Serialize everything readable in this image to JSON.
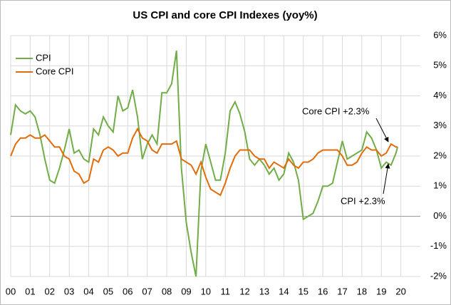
{
  "chart_data": {
    "type": "line",
    "title": "US CPI and core CPI Indexes (yoy%)",
    "x": [
      0,
      0.25,
      0.5,
      0.75,
      1,
      1.25,
      1.5,
      1.75,
      2,
      2.25,
      2.5,
      2.75,
      3,
      3.25,
      3.5,
      3.75,
      4,
      4.25,
      4.5,
      4.75,
      5,
      5.25,
      5.5,
      5.75,
      6,
      6.25,
      6.5,
      6.75,
      7,
      7.25,
      7.5,
      7.75,
      8,
      8.25,
      8.5,
      8.75,
      9,
      9.25,
      9.5,
      9.75,
      10,
      10.25,
      10.5,
      10.75,
      11,
      11.25,
      11.5,
      11.75,
      12,
      12.25,
      12.5,
      12.75,
      13,
      13.25,
      13.5,
      13.75,
      14,
      14.25,
      14.5,
      14.75,
      15,
      15.25,
      15.5,
      15.75,
      16,
      16.25,
      16.5,
      16.75,
      17,
      17.25,
      17.5,
      17.75,
      18,
      18.25,
      18.5,
      18.75,
      19,
      19.25,
      19.5,
      19.75,
      19.83
    ],
    "series": [
      {
        "name": "CPI",
        "color": "#70ad47",
        "values": [
          2.7,
          3.7,
          3.5,
          3.4,
          3.5,
          3.3,
          2.7,
          1.9,
          1.2,
          1.1,
          1.6,
          2.2,
          2.9,
          2.1,
          2.2,
          1.9,
          1.8,
          2.9,
          2.7,
          3.3,
          3.0,
          2.8,
          4.0,
          3.5,
          3.6,
          4.2,
          3.3,
          1.9,
          2.4,
          2.7,
          2.4,
          4.1,
          4.1,
          4.4,
          5.5,
          1.6,
          -0.2,
          -1.2,
          -2.0,
          1.5,
          2.4,
          1.8,
          1.2,
          1.2,
          2.1,
          3.5,
          3.8,
          3.4,
          2.8,
          1.9,
          1.7,
          1.9,
          1.7,
          1.4,
          1.6,
          1.2,
          1.4,
          2.1,
          1.8,
          1.2,
          -0.1,
          0.0,
          0.1,
          0.5,
          1.0,
          1.0,
          1.1,
          1.8,
          2.5,
          1.9,
          2.0,
          2.1,
          2.2,
          2.8,
          2.6,
          2.2,
          1.6,
          1.8,
          1.7,
          2.1,
          2.3
        ]
      },
      {
        "name": "Core CPI",
        "color": "#e36c0a",
        "values": [
          2.0,
          2.4,
          2.6,
          2.6,
          2.7,
          2.6,
          2.6,
          2.7,
          2.5,
          2.3,
          2.3,
          2.0,
          1.9,
          1.5,
          1.4,
          1.1,
          1.2,
          1.9,
          1.8,
          2.2,
          2.3,
          2.2,
          2.0,
          2.1,
          2.1,
          2.6,
          2.9,
          2.6,
          2.5,
          2.2,
          2.1,
          2.4,
          2.4,
          2.4,
          2.5,
          1.9,
          1.8,
          1.7,
          1.4,
          1.8,
          1.3,
          0.9,
          0.8,
          0.7,
          1.1,
          1.6,
          2.0,
          2.2,
          2.2,
          2.2,
          2.0,
          1.9,
          1.9,
          1.6,
          1.8,
          1.7,
          1.6,
          1.9,
          1.7,
          1.6,
          1.8,
          1.8,
          1.9,
          2.1,
          2.2,
          2.2,
          2.2,
          2.2,
          2.0,
          1.7,
          1.7,
          1.8,
          2.1,
          2.3,
          2.2,
          2.2,
          2.0,
          2.1,
          2.4,
          2.3,
          2.3
        ]
      }
    ],
    "xlim": [
      0,
      21
    ],
    "xticks": [
      {
        "value": 0,
        "label": "00"
      },
      {
        "value": 1,
        "label": "01"
      },
      {
        "value": 2,
        "label": "02"
      },
      {
        "value": 3,
        "label": "03"
      },
      {
        "value": 4,
        "label": "04"
      },
      {
        "value": 5,
        "label": "05"
      },
      {
        "value": 6,
        "label": "06"
      },
      {
        "value": 7,
        "label": "07"
      },
      {
        "value": 8,
        "label": "08"
      },
      {
        "value": 9,
        "label": "09"
      },
      10,
      11,
      12,
      13,
      14,
      15,
      16,
      17,
      18,
      19,
      20
    ],
    "ylim": [
      -2,
      6
    ],
    "yticks": [
      {
        "value": -2,
        "label": "-2%"
      },
      {
        "value": -1,
        "label": "-1%"
      },
      {
        "value": 0,
        "label": "0%"
      },
      {
        "value": 1,
        "label": "1%"
      },
      {
        "value": 2,
        "label": "2%"
      },
      {
        "value": 3,
        "label": "3%"
      },
      {
        "value": 4,
        "label": "4%"
      },
      {
        "value": 5,
        "label": "5%"
      },
      {
        "value": 6,
        "label": "6%"
      }
    ],
    "grid": true,
    "legend": "upper left",
    "annotations": [
      "Core CPI +2.3%",
      "CPI +2.3%"
    ]
  }
}
